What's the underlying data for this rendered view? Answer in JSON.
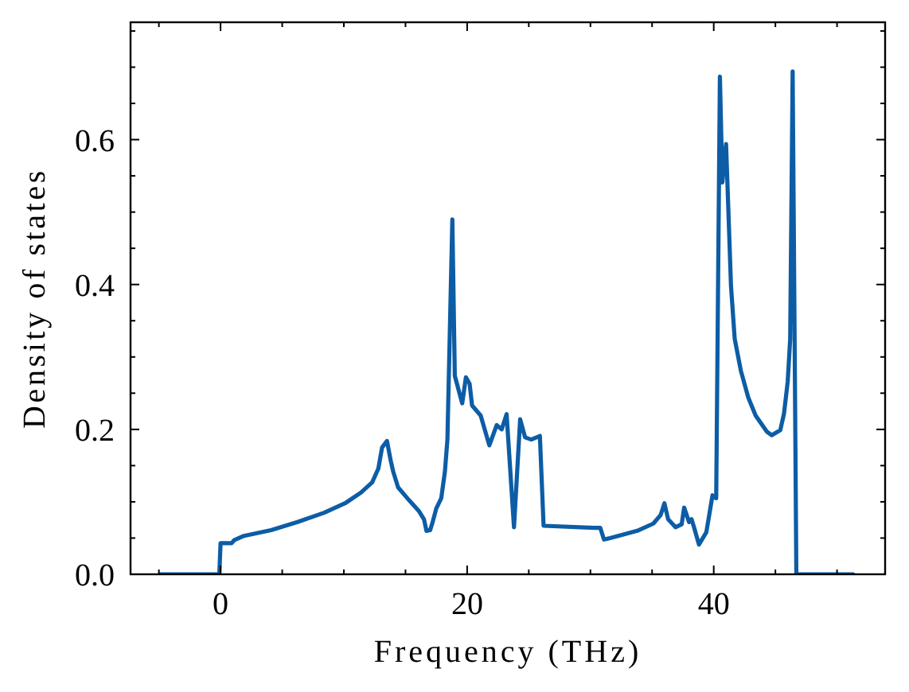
{
  "chart_data": {
    "type": "line",
    "xlabel": "Frequency (THz)",
    "ylabel": "Density of states",
    "xlim": [
      -7.3,
      53.9
    ],
    "ylim": [
      0,
      0.762
    ],
    "xticks": [
      {
        "value": -5,
        "label": null
      },
      0,
      {
        "value": 5,
        "label": null
      },
      {
        "value": 10,
        "label": null
      },
      {
        "value": 15,
        "label": null
      },
      20,
      {
        "value": 25,
        "label": null
      },
      {
        "value": 30,
        "label": null
      },
      {
        "value": 35,
        "label": null
      },
      40,
      {
        "value": 45,
        "label": null
      },
      {
        "value": 50,
        "label": null
      }
    ],
    "yticks": [
      {
        "value": 0,
        "label": "0.0"
      },
      {
        "value": 0.05,
        "label": null
      },
      {
        "value": 0.1,
        "label": null
      },
      {
        "value": 0.15,
        "label": null
      },
      0.2,
      {
        "value": 0.25,
        "label": null
      },
      {
        "value": 0.3,
        "label": null
      },
      {
        "value": 0.35,
        "label": null
      },
      0.4,
      {
        "value": 0.45,
        "label": null
      },
      {
        "value": 0.5,
        "label": null
      },
      {
        "value": 0.55,
        "label": null
      },
      0.6,
      {
        "value": 0.65,
        "label": null
      },
      {
        "value": 0.7,
        "label": null
      },
      {
        "value": 0.75,
        "label": null
      }
    ],
    "grid": false,
    "x": [
      -4.9,
      -0.1,
      0.0,
      0.9,
      1.1,
      1.9,
      4.1,
      6.2,
      8.4,
      10.1,
      11.4,
      12.3,
      12.8,
      13.1,
      13.5,
      13.8,
      14.0,
      14.4,
      15.3,
      16.1,
      16.5,
      16.7,
      17.0,
      17.2,
      17.5,
      17.9,
      18.2,
      18.4,
      18.8,
      19.0,
      19.6,
      19.9,
      20.2,
      20.4,
      21.1,
      21.8,
      22.4,
      22.8,
      23.2,
      23.8,
      24.3,
      24.7,
      25.2,
      25.9,
      26.2,
      30.3,
      30.8,
      31.1,
      31.6,
      33.8,
      35.1,
      35.7,
      36.0,
      36.3,
      36.9,
      37.4,
      37.6,
      38.0,
      38.2,
      38.4,
      38.8,
      39.4,
      39.9,
      40.2,
      40.5,
      40.7,
      41.0,
      41.4,
      41.7,
      42.2,
      42.8,
      43.4,
      44.3,
      44.7,
      45.4,
      45.7,
      46.0,
      46.2,
      46.4,
      46.7,
      51.3
    ],
    "series": [
      {
        "color": "#0c5da5",
        "values": [
          0,
          0,
          0.043,
          0.043,
          0.047,
          0.053,
          0.061,
          0.072,
          0.085,
          0.098,
          0.113,
          0.127,
          0.146,
          0.175,
          0.184,
          0.157,
          0.142,
          0.12,
          0.102,
          0.087,
          0.076,
          0.06,
          0.061,
          0.072,
          0.091,
          0.105,
          0.142,
          0.186,
          0.49,
          0.274,
          0.236,
          0.272,
          0.263,
          0.233,
          0.219,
          0.178,
          0.206,
          0.2,
          0.221,
          0.065,
          0.214,
          0.189,
          0.186,
          0.191,
          0.067,
          0.064,
          0.064,
          0.048,
          0.05,
          0.06,
          0.07,
          0.082,
          0.098,
          0.076,
          0.065,
          0.069,
          0.092,
          0.072,
          0.076,
          0.065,
          0.041,
          0.058,
          0.109,
          0.105,
          0.687,
          0.541,
          0.594,
          0.398,
          0.325,
          0.281,
          0.244,
          0.219,
          0.197,
          0.192,
          0.199,
          0.222,
          0.266,
          0.325,
          0.694,
          0,
          0
        ]
      }
    ]
  }
}
